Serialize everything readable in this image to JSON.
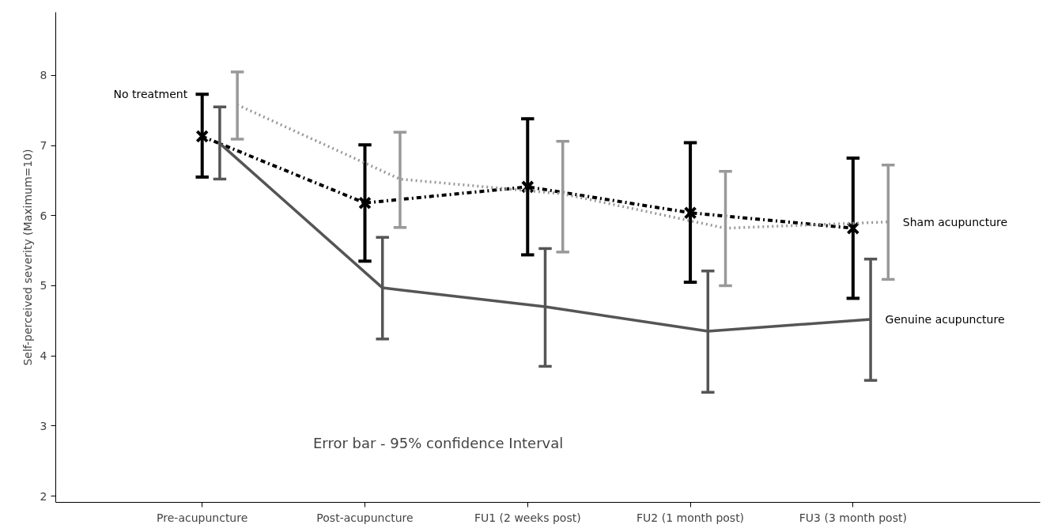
{
  "chart_data": {
    "type": "line",
    "categories": [
      "Pre-acupuncture",
      "Post-acupuncture",
      "FU1 (2 weeks post)",
      "FU2 (1 month post)",
      "FU3 (3 month post)"
    ],
    "ylabel": "Self-perceived severity (Maximum=10)",
    "ylim": [
      1.91,
      8.9
    ],
    "yticks": [
      2,
      3,
      4,
      5,
      6,
      7,
      8
    ],
    "grid": false,
    "annotations": [
      "Error bar - 95% confidence Interval"
    ],
    "series": [
      {
        "name": "No treatment",
        "color": "#000000",
        "line_style": "dashdot",
        "marker": "cross",
        "values": [
          7.13,
          6.18,
          6.41,
          6.04,
          5.82
        ],
        "errors": [
          [
            6.55,
            7.73
          ],
          [
            5.35,
            7.01
          ],
          [
            5.44,
            7.38
          ],
          [
            5.05,
            7.04
          ],
          [
            4.82,
            6.82
          ]
        ]
      },
      {
        "name": "Genuine acupuncture",
        "color": "#555555",
        "line_style": "solid",
        "marker": "none",
        "values": [
          7.03,
          4.97,
          4.7,
          4.35,
          4.52
        ],
        "errors": [
          [
            6.52,
            7.55
          ],
          [
            4.24,
            5.69
          ],
          [
            3.85,
            5.53
          ],
          [
            3.48,
            5.21
          ],
          [
            3.65,
            5.38
          ]
        ]
      },
      {
        "name": "Sham acupuncture",
        "color": "#999999",
        "line_style": "dotted",
        "marker": "none",
        "values": [
          7.58,
          6.52,
          6.31,
          5.82,
          5.91
        ],
        "errors": [
          [
            7.09,
            8.05
          ],
          [
            5.83,
            7.19
          ],
          [
            5.48,
            7.06
          ],
          [
            5.0,
            6.63
          ],
          [
            5.09,
            6.72
          ]
        ]
      }
    ]
  }
}
